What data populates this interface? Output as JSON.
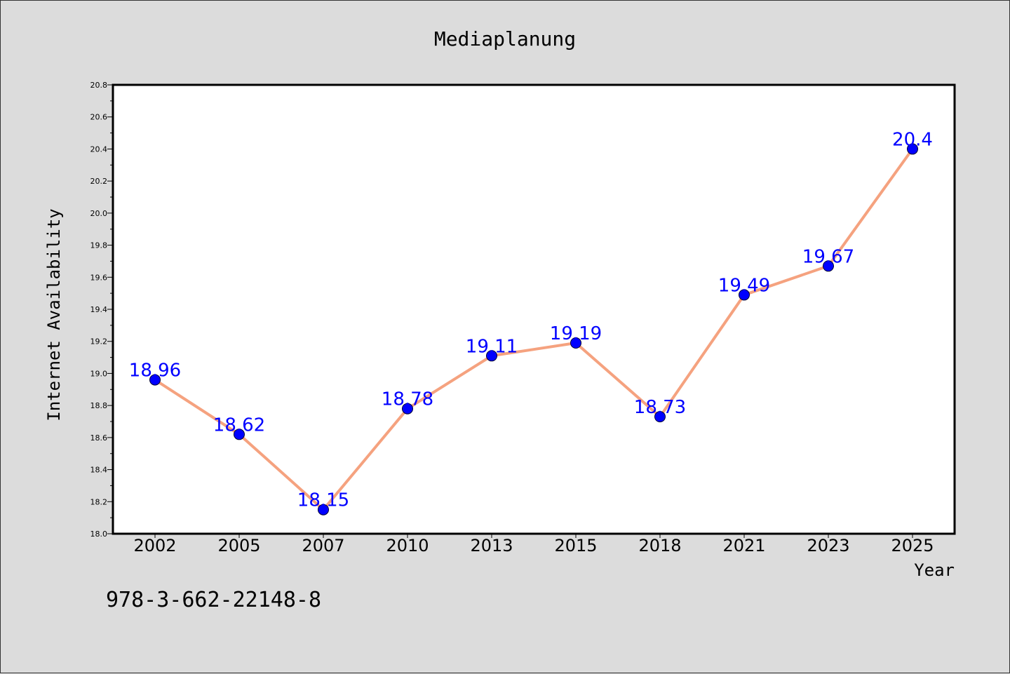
{
  "chart_data": {
    "type": "line",
    "title": "Mediaplanung",
    "xlabel": "Year",
    "ylabel": "Internet Availability",
    "categories": [
      "2002",
      "2005",
      "2007",
      "2010",
      "2013",
      "2015",
      "2018",
      "2021",
      "2023",
      "2025"
    ],
    "values": [
      18.96,
      18.62,
      18.15,
      18.78,
      19.11,
      19.19,
      18.73,
      19.49,
      19.67,
      20.4
    ],
    "data_labels": [
      "18.96",
      "18.62",
      "18.15",
      "18.78",
      "19.11",
      "19.19",
      "18.73",
      "19.49",
      "19.67",
      "20.4"
    ],
    "ylim": [
      18.0,
      20.8
    ],
    "yticks": [
      "18.0",
      "18.2",
      "18.4",
      "18.6",
      "18.8",
      "19.0",
      "19.2",
      "19.4",
      "19.6",
      "19.8",
      "20.0",
      "20.2",
      "20.4",
      "20.6",
      "20.8"
    ],
    "grid": false,
    "line_color": "#f5a27f",
    "marker_color": "#0000ff",
    "label_color": "#0000ff"
  },
  "footer": {
    "text": "978-3-662-22148-8"
  }
}
